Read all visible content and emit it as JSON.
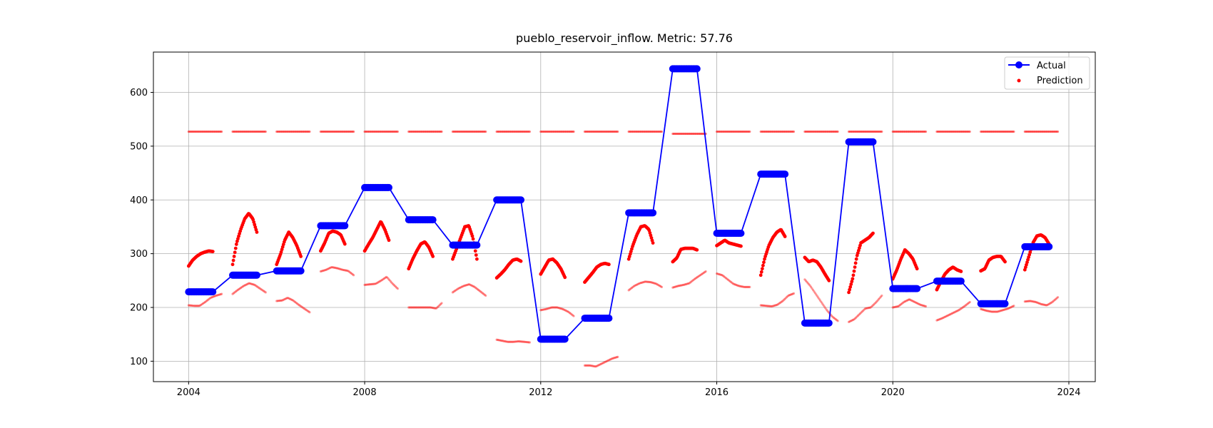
{
  "chart_data": {
    "type": "scatter",
    "title": "pueblo_reservoir_inflow. Metric: 57.76",
    "xlabel": "",
    "ylabel": "",
    "xlim": [
      2003.2,
      2024.6
    ],
    "ylim": [
      62,
      675
    ],
    "x_ticks": [
      2004,
      2008,
      2012,
      2016,
      2020,
      2024
    ],
    "y_ticks": [
      100,
      200,
      300,
      400,
      500,
      600
    ],
    "grid": true,
    "legend_position": "upper right",
    "colors": {
      "actual": "#0000ff",
      "prediction": "#ff0000"
    },
    "legend": [
      {
        "label": "Actual",
        "marker": "line-dot"
      },
      {
        "label": "Prediction",
        "marker": "dot"
      }
    ],
    "actual": [
      {
        "start": 2004.0,
        "end": 2004.55,
        "value": 229
      },
      {
        "start": 2005.0,
        "end": 2005.55,
        "value": 260
      },
      {
        "start": 2006.0,
        "end": 2006.55,
        "value": 268
      },
      {
        "start": 2007.0,
        "end": 2007.55,
        "value": 352
      },
      {
        "start": 2008.0,
        "end": 2008.55,
        "value": 423
      },
      {
        "start": 2009.0,
        "end": 2009.55,
        "value": 363
      },
      {
        "start": 2010.0,
        "end": 2010.55,
        "value": 316
      },
      {
        "start": 2011.0,
        "end": 2011.55,
        "value": 400
      },
      {
        "start": 2012.0,
        "end": 2012.55,
        "value": 141
      },
      {
        "start": 2013.0,
        "end": 2013.55,
        "value": 180
      },
      {
        "start": 2014.0,
        "end": 2014.55,
        "value": 376
      },
      {
        "start": 2015.0,
        "end": 2015.55,
        "value": 644
      },
      {
        "start": 2016.0,
        "end": 2016.55,
        "value": 338
      },
      {
        "start": 2017.0,
        "end": 2017.55,
        "value": 448
      },
      {
        "start": 2018.0,
        "end": 2018.55,
        "value": 171
      },
      {
        "start": 2019.0,
        "end": 2019.55,
        "value": 508
      },
      {
        "start": 2020.0,
        "end": 2020.55,
        "value": 235
      },
      {
        "start": 2021.0,
        "end": 2021.55,
        "value": 249
      },
      {
        "start": 2022.0,
        "end": 2022.55,
        "value": 207
      },
      {
        "start": 2023.0,
        "end": 2023.55,
        "value": 313
      }
    ],
    "prediction_main": [
      {
        "start": 2004.0,
        "end": 2004.55,
        "values": [
          277,
          288,
          295,
          300,
          303,
          305,
          304
        ]
      },
      {
        "start": 2005.0,
        "end": 2005.55,
        "values": [
          280,
          320,
          345,
          365,
          375,
          365,
          340
        ]
      },
      {
        "start": 2006.0,
        "end": 2006.55,
        "values": [
          280,
          300,
          325,
          340,
          330,
          315,
          295
        ]
      },
      {
        "start": 2007.0,
        "end": 2007.55,
        "values": [
          305,
          320,
          338,
          342,
          340,
          335,
          318
        ]
      },
      {
        "start": 2008.0,
        "end": 2008.55,
        "values": [
          305,
          318,
          330,
          345,
          360,
          345,
          325
        ]
      },
      {
        "start": 2009.0,
        "end": 2009.55,
        "values": [
          272,
          290,
          305,
          318,
          322,
          312,
          295
        ]
      },
      {
        "start": 2010.0,
        "end": 2010.55,
        "values": [
          290,
          310,
          330,
          350,
          352,
          330,
          290
        ]
      },
      {
        "start": 2011.0,
        "end": 2011.55,
        "values": [
          255,
          262,
          270,
          280,
          288,
          290,
          286
        ]
      },
      {
        "start": 2012.0,
        "end": 2012.55,
        "values": [
          262,
          275,
          288,
          290,
          283,
          272,
          256
        ]
      },
      {
        "start": 2013.0,
        "end": 2013.55,
        "values": [
          247,
          256,
          265,
          275,
          280,
          282,
          280
        ]
      },
      {
        "start": 2014.0,
        "end": 2014.55,
        "values": [
          290,
          315,
          335,
          350,
          352,
          345,
          320
        ]
      },
      {
        "start": 2015.0,
        "end": 2015.55,
        "values": [
          285,
          292,
          308,
          310,
          310,
          310,
          307
        ]
      },
      {
        "start": 2016.0,
        "end": 2016.55,
        "values": [
          315,
          320,
          325,
          320,
          318,
          316,
          314
        ]
      },
      {
        "start": 2017.0,
        "end": 2017.55,
        "values": [
          260,
          292,
          315,
          330,
          340,
          345,
          332
        ]
      },
      {
        "start": 2018.0,
        "end": 2018.55,
        "values": [
          293,
          285,
          288,
          285,
          275,
          262,
          250
        ]
      },
      {
        "start": 2019.0,
        "end": 2019.55,
        "values": [
          228,
          255,
          295,
          320,
          325,
          330,
          338
        ]
      },
      {
        "start": 2020.0,
        "end": 2020.55,
        "values": [
          253,
          270,
          290,
          307,
          300,
          290,
          272
        ]
      },
      {
        "start": 2021.0,
        "end": 2021.55,
        "values": [
          233,
          248,
          262,
          270,
          275,
          270,
          267
        ]
      },
      {
        "start": 2022.0,
        "end": 2022.55,
        "values": [
          268,
          272,
          288,
          293,
          295,
          295,
          285
        ]
      },
      {
        "start": 2023.0,
        "end": 2023.55,
        "values": [
          270,
          295,
          320,
          333,
          335,
          330,
          318
        ]
      }
    ],
    "prediction_upper": [
      {
        "start": 2004.0,
        "end": 2004.75,
        "value": 527
      },
      {
        "start": 2005.0,
        "end": 2005.75,
        "value": 527
      },
      {
        "start": 2006.0,
        "end": 2006.75,
        "value": 527
      },
      {
        "start": 2007.0,
        "end": 2007.75,
        "value": 527
      },
      {
        "start": 2008.0,
        "end": 2008.75,
        "value": 527
      },
      {
        "start": 2009.0,
        "end": 2009.75,
        "value": 527
      },
      {
        "start": 2010.0,
        "end": 2010.75,
        "value": 527
      },
      {
        "start": 2011.0,
        "end": 2011.75,
        "value": 527
      },
      {
        "start": 2012.0,
        "end": 2012.75,
        "value": 527
      },
      {
        "start": 2013.0,
        "end": 2013.75,
        "value": 527
      },
      {
        "start": 2014.0,
        "end": 2014.75,
        "value": 527
      },
      {
        "start": 2015.0,
        "end": 2015.75,
        "value": 523
      },
      {
        "start": 2016.0,
        "end": 2016.75,
        "value": 527
      },
      {
        "start": 2017.0,
        "end": 2017.75,
        "value": 527
      },
      {
        "start": 2018.0,
        "end": 2018.75,
        "value": 527
      },
      {
        "start": 2019.0,
        "end": 2019.75,
        "value": 527
      },
      {
        "start": 2020.0,
        "end": 2020.75,
        "value": 527
      },
      {
        "start": 2021.0,
        "end": 2021.75,
        "value": 527
      },
      {
        "start": 2022.0,
        "end": 2022.75,
        "value": 527
      },
      {
        "start": 2023.0,
        "end": 2023.75,
        "value": 527
      }
    ],
    "prediction_lower": [
      {
        "start": 2004.0,
        "end": 2004.75,
        "values": [
          204,
          203,
          203,
          210,
          218,
          222,
          225
        ]
      },
      {
        "start": 2005.0,
        "end": 2005.75,
        "values": [
          225,
          233,
          240,
          245,
          242,
          235,
          228
        ]
      },
      {
        "start": 2006.0,
        "end": 2006.75,
        "values": [
          212,
          213,
          218,
          213,
          205,
          198,
          191
        ]
      },
      {
        "start": 2007.0,
        "end": 2007.75,
        "values": [
          267,
          270,
          275,
          273,
          270,
          268,
          260
        ]
      },
      {
        "start": 2008.0,
        "end": 2008.75,
        "values": [
          242,
          243,
          244,
          250,
          257,
          245,
          235
        ]
      },
      {
        "start": 2009.0,
        "end": 2009.75,
        "values": [
          200,
          200,
          200,
          200,
          200,
          198,
          208
        ]
      },
      {
        "start": 2010.0,
        "end": 2010.75,
        "values": [
          228,
          235,
          240,
          243,
          238,
          230,
          222
        ]
      },
      {
        "start": 2011.0,
        "end": 2011.75,
        "values": [
          140,
          138,
          136,
          136,
          137,
          136,
          135
        ]
      },
      {
        "start": 2012.0,
        "end": 2012.75,
        "values": [
          195,
          197,
          200,
          200,
          197,
          192,
          184
        ]
      },
      {
        "start": 2013.0,
        "end": 2013.75,
        "values": [
          92,
          92,
          90,
          95,
          100,
          105,
          108
        ]
      },
      {
        "start": 2014.0,
        "end": 2014.75,
        "values": [
          232,
          240,
          245,
          248,
          247,
          244,
          238
        ]
      },
      {
        "start": 2015.0,
        "end": 2015.75,
        "values": [
          237,
          240,
          242,
          245,
          253,
          260,
          267
        ]
      },
      {
        "start": 2016.0,
        "end": 2016.75,
        "values": [
          263,
          260,
          252,
          244,
          240,
          238,
          238
        ]
      },
      {
        "start": 2017.0,
        "end": 2017.75,
        "values": [
          204,
          203,
          202,
          205,
          212,
          222,
          226
        ]
      },
      {
        "start": 2018.0,
        "end": 2018.75,
        "values": [
          252,
          240,
          225,
          210,
          195,
          183,
          175
        ]
      },
      {
        "start": 2019.0,
        "end": 2019.75,
        "values": [
          173,
          178,
          188,
          198,
          200,
          210,
          222
        ]
      },
      {
        "start": 2020.0,
        "end": 2020.75,
        "values": [
          200,
          202,
          210,
          215,
          210,
          205,
          202
        ]
      },
      {
        "start": 2021.0,
        "end": 2021.75,
        "values": [
          176,
          180,
          185,
          190,
          195,
          202,
          210
        ]
      },
      {
        "start": 2022.0,
        "end": 2022.75,
        "values": [
          197,
          194,
          192,
          192,
          195,
          198,
          203
        ]
      },
      {
        "start": 2023.0,
        "end": 2023.75,
        "values": [
          211,
          212,
          210,
          206,
          204,
          210,
          219
        ]
      }
    ]
  }
}
